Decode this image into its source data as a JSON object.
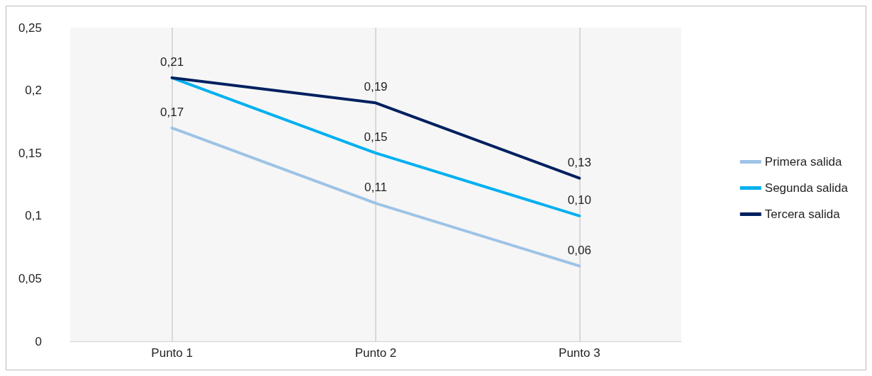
{
  "chart_data": {
    "type": "line",
    "categories": [
      "Punto 1",
      "Punto 2",
      "Punto 3"
    ],
    "series": [
      {
        "name": "Primera salida",
        "color": "#9dc3e6",
        "values": [
          0.17,
          0.11,
          0.06
        ],
        "value_labels": [
          "0,17",
          "0,11",
          "0,06"
        ]
      },
      {
        "name": "Segunda salida",
        "color": "#00b0f0",
        "values": [
          0.21,
          0.15,
          0.1
        ],
        "value_labels": [
          null,
          "0,15",
          "0,10"
        ]
      },
      {
        "name": "Tercera salida",
        "color": "#002060",
        "values": [
          0.21,
          0.19,
          0.13
        ],
        "value_labels": [
          "0,21",
          "0,19",
          "0,13"
        ]
      }
    ],
    "ylim": [
      0,
      0.25
    ],
    "yticks": [
      {
        "value": 0,
        "label": "0"
      },
      {
        "value": 0.05,
        "label": "0,05"
      },
      {
        "value": 0.1,
        "label": "0,1"
      },
      {
        "value": 0.15,
        "label": "0,15"
      },
      {
        "value": 0.2,
        "label": "0,2"
      },
      {
        "value": 0.25,
        "label": "0,25"
      }
    ],
    "grid": "x",
    "legend": "right",
    "marker": "none",
    "line_style": "solid"
  }
}
